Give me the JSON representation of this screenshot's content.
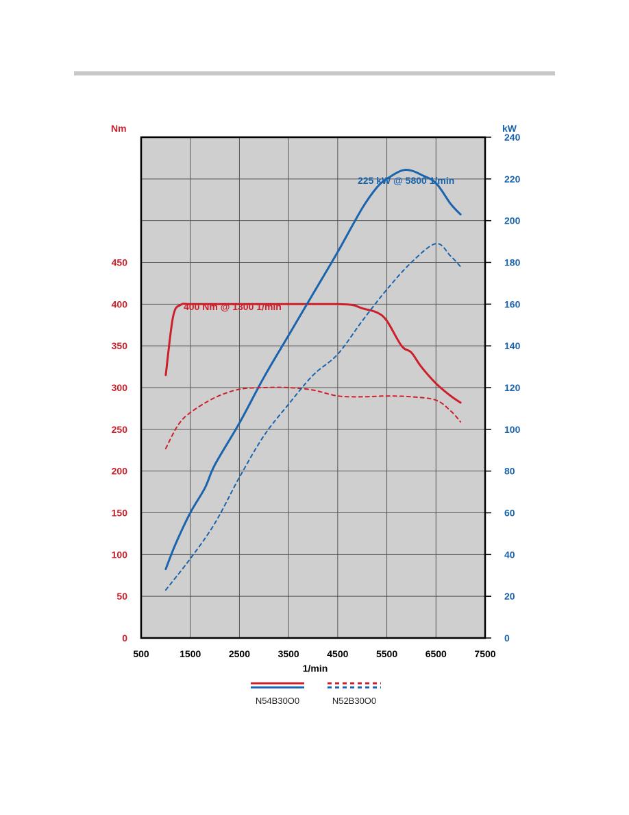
{
  "chart_data": {
    "type": "line",
    "x_axis": {
      "label": "1/min",
      "range": [
        500,
        7500
      ],
      "ticks": [
        500,
        1500,
        2500,
        3500,
        4500,
        5500,
        6500,
        7500
      ]
    },
    "y_left": {
      "unit": "Nm",
      "range": [
        0,
        600
      ],
      "ticks": [
        0,
        50,
        100,
        150,
        200,
        250,
        300,
        350,
        400,
        450
      ],
      "color": "#cc1f2a"
    },
    "y_right": {
      "unit": "kW",
      "range": [
        0,
        240
      ],
      "ticks": [
        0,
        20,
        40,
        60,
        80,
        100,
        120,
        140,
        160,
        180,
        200,
        220,
        240
      ],
      "color": "#1a63ad"
    },
    "grid": true,
    "series": [
      {
        "name": "N54B30O0",
        "quantity": "torque",
        "axis": "left",
        "style": "solid",
        "color": "#cc1f2a",
        "x": [
          1000,
          1150,
          1300,
          1500,
          2000,
          3000,
          4000,
          4500,
          4800,
          5000,
          5300,
          5500,
          5800,
          6000,
          6200,
          6500,
          6800,
          7000
        ],
        "y": [
          315,
          385,
          399,
          400,
          400,
          400,
          400,
          400,
          399,
          395,
          390,
          380,
          350,
          342,
          325,
          305,
          290,
          282
        ]
      },
      {
        "name": "N54B30O0",
        "quantity": "power",
        "axis": "right",
        "style": "solid",
        "color": "#1a63ad",
        "x": [
          1000,
          1200,
          1500,
          1800,
          2000,
          2500,
          3000,
          3500,
          4000,
          4500,
          5000,
          5300,
          5500,
          5800,
          6000,
          6200,
          6500,
          6800,
          7000
        ],
        "y": [
          33,
          45,
          60,
          72,
          83,
          103,
          125,
          145,
          165,
          185,
          206,
          216,
          220,
          224,
          224,
          222,
          218,
          208,
          203
        ]
      },
      {
        "name": "N52B30O0",
        "quantity": "torque",
        "axis": "left",
        "style": "dashed",
        "color": "#cc1f2a",
        "x": [
          1000,
          1250,
          1500,
          2000,
          2500,
          3000,
          3500,
          4000,
          4500,
          5000,
          5500,
          6000,
          6500,
          6800,
          7000
        ],
        "y": [
          227,
          255,
          270,
          288,
          298,
          300,
          300,
          297,
          290,
          289,
          290,
          289,
          285,
          272,
          259
        ]
      },
      {
        "name": "N52B30O0",
        "quantity": "power",
        "axis": "right",
        "style": "dashed",
        "color": "#1a63ad",
        "x": [
          1000,
          1500,
          2000,
          2500,
          3000,
          3500,
          4000,
          4500,
          5000,
          5500,
          6000,
          6500,
          6800,
          7000
        ],
        "y": [
          23,
          38,
          55,
          77,
          97,
          112,
          126,
          136,
          152,
          167,
          180,
          189,
          183,
          178
        ]
      }
    ],
    "annotations": [
      {
        "text": "400 Nm @ 1300 1/min",
        "color": "#cc1f2a"
      },
      {
        "text": "225 kW @ 5800 1/min",
        "color": "#1a63ad"
      }
    ],
    "legend": {
      "placement": "bottom",
      "entries": [
        {
          "label": "N54B30O0",
          "style": "solid"
        },
        {
          "label": "N52B30O0",
          "style": "dashed"
        }
      ]
    }
  }
}
